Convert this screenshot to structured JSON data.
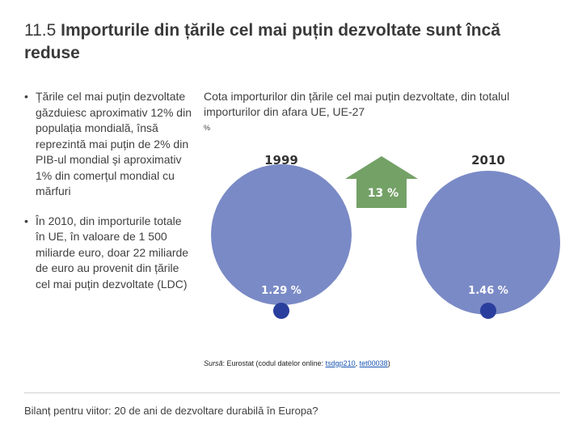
{
  "slide": {
    "number": "11.5",
    "title": "Importurile din țările cel mai puțin dezvoltate sunt încă reduse"
  },
  "bullets": [
    "Țările cel mai puțin dezvoltate găzduiesc aproximativ 12% din populația mondială, însă reprezintă mai puțin de 2% din PIB-ul mondial și aproximativ 1% din comerțul mondial cu mărfuri",
    "În 2010, din importurile totale în UE, în valoare de 1 500 miliarde euro, doar 22 miliarde de euro au provenit din țările cel mai puțin dezvoltate (LDC)"
  ],
  "bullet_symbol": "•",
  "chart_caption": "Cota importurilor din țările cel mai puțin dezvoltate, din totalul importurilor din afara UE, UE-27",
  "percent_note": "%",
  "chart_data": {
    "type": "pie",
    "title": "Cota importurilor din țările cel mai puțin dezvoltate, din totalul importurilor din afara UE, UE-27",
    "unit": "%",
    "series": [
      {
        "name": "1999",
        "value": 1.29,
        "label": "1.29 %"
      },
      {
        "name": "2010",
        "value": 1.46,
        "label": "1.46 %"
      }
    ],
    "change": {
      "value": 13,
      "label": "13 %",
      "direction": "increase"
    }
  },
  "colors": {
    "circle": "#7a8ac6",
    "ldc_dot": "#2a3f9d",
    "arrow": "#74a166",
    "label_text": "#ffffff",
    "year_text": "#333333"
  },
  "source": {
    "label": "Sursă",
    "text": ": Eurostat (codul datelor online: ",
    "link1": "tsdgp210",
    "sep": ", ",
    "link2": "tet00038",
    "end": ")"
  },
  "footer": "Bilanț pentru viitor: 20 de ani de dezvoltare durabilă în Europa?"
}
